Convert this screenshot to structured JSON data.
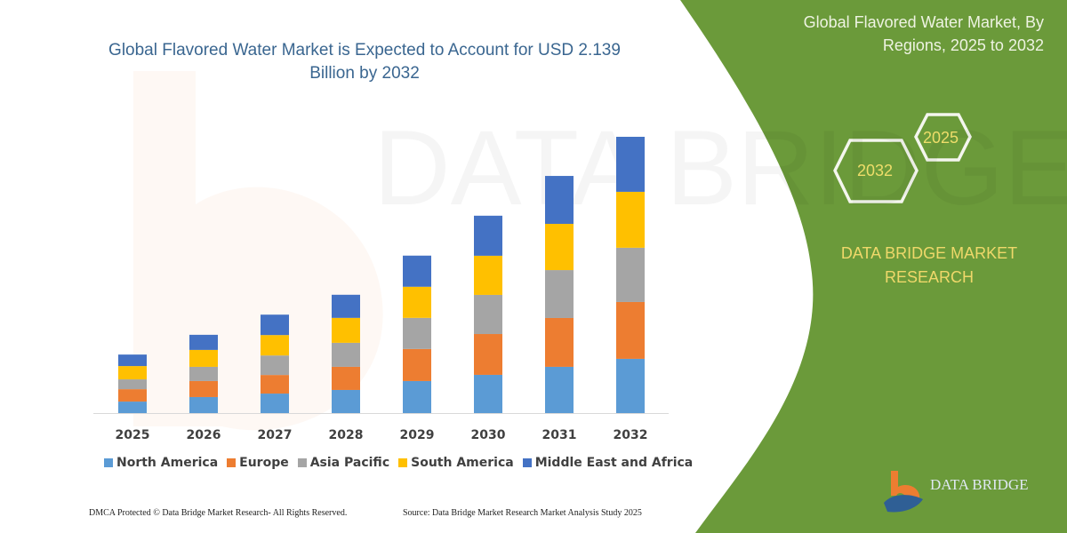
{
  "header": {
    "title": "Global Flavored Water Market is Expected to Account for USD 2.139 Billion by 2032",
    "side_title": "Global Flavored Water Market, By Regions, 2025 to 2032"
  },
  "badges": {
    "year_start": "2025",
    "year_end": "2032"
  },
  "brand": {
    "name": "DATA BRIDGE MARKET RESEARCH",
    "logo_text": "DATA BRIDGE"
  },
  "footer": {
    "copyright": "DMCA Protected © Data Bridge Market Research- All Rights Reserved.",
    "source": "Source: Data Bridge Market Research Market Analysis Study 2025"
  },
  "colors": {
    "green_panel": "#6b9a3a",
    "title_blue": "#3a6690",
    "accent_yellow": "#efd86a"
  },
  "chart_data": {
    "type": "bar",
    "stacked": true,
    "title": "",
    "xlabel": "",
    "ylabel": "",
    "grid": false,
    "legend_position": "bottom",
    "categories": [
      "2025",
      "2026",
      "2027",
      "2028",
      "2029",
      "2030",
      "2031",
      "2032"
    ],
    "series": [
      {
        "name": "North America",
        "color": "#5b9bd5",
        "values": [
          0.089,
          0.124,
          0.151,
          0.179,
          0.248,
          0.296,
          0.358,
          0.42
        ]
      },
      {
        "name": "Europe",
        "color": "#ed7d31",
        "values": [
          0.096,
          0.124,
          0.144,
          0.179,
          0.248,
          0.316,
          0.378,
          0.44
        ]
      },
      {
        "name": "Asia Pacific",
        "color": "#a5a5a5",
        "values": [
          0.076,
          0.11,
          0.151,
          0.186,
          0.241,
          0.303,
          0.371,
          0.42
        ]
      },
      {
        "name": "South America",
        "color": "#ffc000",
        "values": [
          0.103,
          0.131,
          0.158,
          0.193,
          0.241,
          0.303,
          0.358,
          0.433
        ]
      },
      {
        "name": "Middle East and Africa",
        "color": "#4472c4",
        "values": [
          0.089,
          0.117,
          0.158,
          0.179,
          0.241,
          0.31,
          0.371,
          0.426
        ]
      }
    ]
  }
}
